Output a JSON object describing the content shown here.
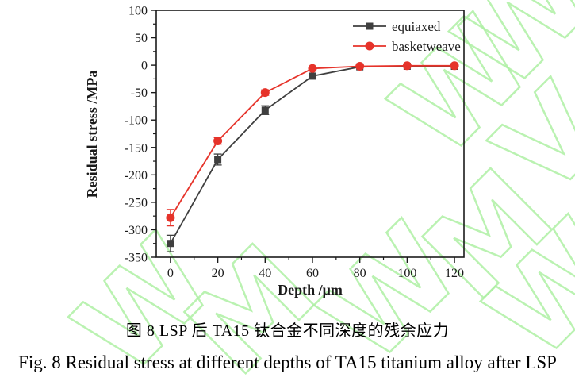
{
  "watermark": {
    "color": "#aef0a4"
  },
  "chart_data": {
    "type": "line",
    "title": "",
    "xlabel": "Depth /μm",
    "ylabel": "Residual stress /MPa",
    "xlim": [
      -6,
      124
    ],
    "ylim": [
      -350,
      100
    ],
    "x_ticks": [
      0,
      20,
      40,
      60,
      80,
      100,
      120
    ],
    "y_ticks": [
      100,
      50,
      0,
      -50,
      -100,
      -150,
      -200,
      -250,
      -300,
      -350
    ],
    "x_minor_ticks": [
      10,
      30,
      50,
      70,
      90,
      110
    ],
    "y_minor_ticks": [
      75,
      25,
      -25,
      -75,
      -125,
      -175,
      -225,
      -275,
      -325
    ],
    "grid": false,
    "legend_position": "top-right-inside",
    "x": [
      0,
      20,
      40,
      60,
      80,
      100,
      120
    ],
    "series": [
      {
        "name": "equiaxed",
        "color": "#3f3f3f",
        "marker": "square",
        "values": [
          -325,
          -172,
          -82,
          -20,
          -3,
          -2,
          -2
        ],
        "errors": [
          15,
          10,
          8,
          4,
          0,
          0,
          0
        ]
      },
      {
        "name": "basketweave",
        "color": "#e6332a",
        "marker": "circle",
        "values": [
          -278,
          -138,
          -50,
          -6,
          -2,
          -1,
          -1
        ],
        "errors": [
          15,
          6,
          5,
          3,
          0,
          0,
          0
        ]
      }
    ]
  },
  "captions": {
    "zh": "图 8 LSP 后 TA15 钛合金不同深度的残余应力",
    "en": "Fig. 8 Residual stress at different depths of TA15 titanium alloy after LSP"
  }
}
